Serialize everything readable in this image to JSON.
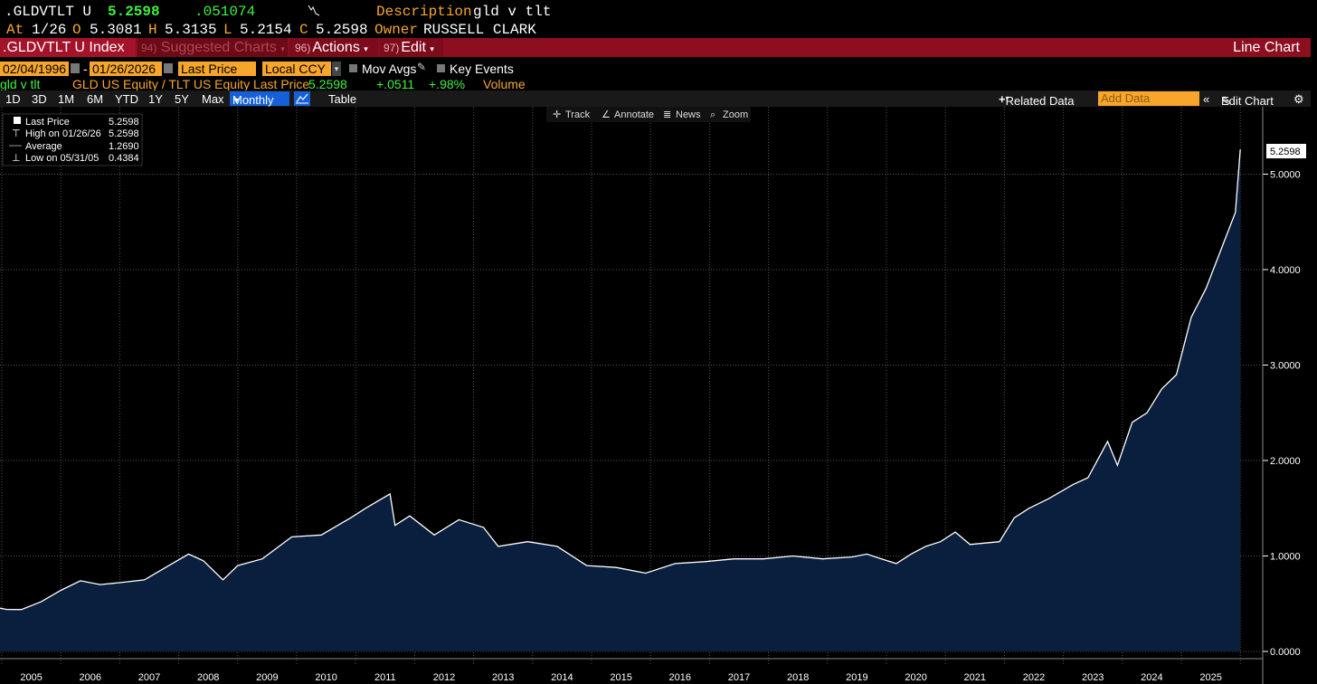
{
  "header": {
    "ticker": ".GLDVTLT U",
    "last": "5.2598",
    "change": ".051074",
    "description_label": "Description",
    "description": "gld v tlt",
    "at_label": "At",
    "date": "1/26",
    "o_label": "O",
    "open": "5.3081",
    "h_label": "H",
    "high": "5.3135",
    "l_label": "L",
    "low": "5.2154",
    "c_label": "C",
    "close": "5.2598",
    "owner_label": "Owner",
    "owner": "RUSSELL CLARK"
  },
  "menubar": {
    "security": ".GLDVTLT U Index",
    "suggested_num": "94)",
    "suggested": "Suggested Charts",
    "actions_num": "96)",
    "actions": "Actions",
    "edit_num": "97)",
    "edit": "Edit",
    "chart_type": "Line Chart"
  },
  "range": {
    "start": "02/04/1996",
    "sep": "-",
    "end": "01/26/2026",
    "field": "Last Price",
    "currency": "Local CCY",
    "mov_avgs": "Mov Avgs",
    "key_events": "Key Events"
  },
  "legend_row": {
    "name": "gld v tlt",
    "series": "GLD US Equity / TLT US Equity Last Price",
    "value": "5.2598",
    "chg": "+.0511",
    "pct": "+.98%",
    "volume": "Volume"
  },
  "toolbar": {
    "periods": [
      "1D",
      "3D",
      "1M",
      "6M",
      "YTD",
      "1Y",
      "5Y",
      "Max"
    ],
    "frequency": "Monthly",
    "table": "Table",
    "related": "Related Data",
    "add_data": "Add Data",
    "edit_chart": "Edit Chart"
  },
  "chart_tools": [
    "Track",
    "Annotate",
    "News",
    "Zoom"
  ],
  "stats": {
    "last_label": "Last Price",
    "last_value": "5.2598",
    "high_label": "High on 01/26/26",
    "high_value": "5.2598",
    "avg_label": "Average",
    "avg_value": "1.2690",
    "low_label": "Low on 05/31/05",
    "low_value": "0.4384"
  },
  "colors": {
    "accent": "#f7a62b",
    "menubar": "#8c0e1f",
    "area_fill": "#0a1f3d",
    "line": "#ffffff",
    "positive": "#3ff03f"
  },
  "chart_data": {
    "type": "area",
    "series": [
      {
        "name": "GLD US Equity / TLT US Equity Last Price",
        "points": [
          [
            "2004-12",
            0.46
          ],
          [
            "2005-02",
            0.44
          ],
          [
            "2005-05",
            0.4384
          ],
          [
            "2005-09",
            0.52
          ],
          [
            "2006-01",
            0.64
          ],
          [
            "2006-05",
            0.74
          ],
          [
            "2006-09",
            0.7
          ],
          [
            "2007-01",
            0.72
          ],
          [
            "2007-06",
            0.75
          ],
          [
            "2007-11",
            0.9
          ],
          [
            "2008-03",
            1.02
          ],
          [
            "2008-06",
            0.95
          ],
          [
            "2008-10",
            0.75
          ],
          [
            "2009-01",
            0.9
          ],
          [
            "2009-06",
            0.97
          ],
          [
            "2009-12",
            1.2
          ],
          [
            "2010-06",
            1.22
          ],
          [
            "2010-12",
            1.4
          ],
          [
            "2011-03",
            1.5
          ],
          [
            "2011-08",
            1.65
          ],
          [
            "2011-09",
            1.32
          ],
          [
            "2011-12",
            1.42
          ],
          [
            "2012-05",
            1.22
          ],
          [
            "2012-10",
            1.38
          ],
          [
            "2013-03",
            1.3
          ],
          [
            "2013-06",
            1.1
          ],
          [
            "2013-12",
            1.15
          ],
          [
            "2014-06",
            1.1
          ],
          [
            "2014-12",
            0.9
          ],
          [
            "2015-06",
            0.88
          ],
          [
            "2015-12",
            0.82
          ],
          [
            "2016-06",
            0.92
          ],
          [
            "2016-12",
            0.94
          ],
          [
            "2017-06",
            0.97
          ],
          [
            "2017-12",
            0.97
          ],
          [
            "2018-06",
            1.0
          ],
          [
            "2018-12",
            0.97
          ],
          [
            "2019-06",
            0.99
          ],
          [
            "2019-09",
            1.02
          ],
          [
            "2019-12",
            0.97
          ],
          [
            "2020-03",
            0.92
          ],
          [
            "2020-06",
            1.02
          ],
          [
            "2020-09",
            1.1
          ],
          [
            "2020-12",
            1.15
          ],
          [
            "2021-03",
            1.25
          ],
          [
            "2021-06",
            1.12
          ],
          [
            "2021-12",
            1.15
          ],
          [
            "2022-03",
            1.4
          ],
          [
            "2022-06",
            1.5
          ],
          [
            "2022-10",
            1.6
          ],
          [
            "2023-03",
            1.75
          ],
          [
            "2023-06",
            1.82
          ],
          [
            "2023-10",
            2.2
          ],
          [
            "2023-12",
            1.95
          ],
          [
            "2024-03",
            2.4
          ],
          [
            "2024-06",
            2.5
          ],
          [
            "2024-09",
            2.75
          ],
          [
            "2024-12",
            2.9
          ],
          [
            "2025-03",
            3.5
          ],
          [
            "2025-06",
            3.8
          ],
          [
            "2025-09",
            4.2
          ],
          [
            "2025-12",
            4.6
          ],
          [
            "2026-01",
            5.2598
          ]
        ]
      }
    ],
    "ylim": [
      0,
      5.7
    ],
    "yticks": [
      "0.0000",
      "1.0000",
      "2.0000",
      "3.0000",
      "4.0000",
      "5.0000"
    ],
    "xticks": [
      "2005",
      "2006",
      "2007",
      "2008",
      "2009",
      "2010",
      "2011",
      "2012",
      "2013",
      "2014",
      "2015",
      "2016",
      "2017",
      "2018",
      "2019",
      "2020",
      "2021",
      "2022",
      "2023",
      "2024",
      "2025"
    ],
    "last_label": "5.2598",
    "grid": true,
    "legend": "top-left"
  }
}
